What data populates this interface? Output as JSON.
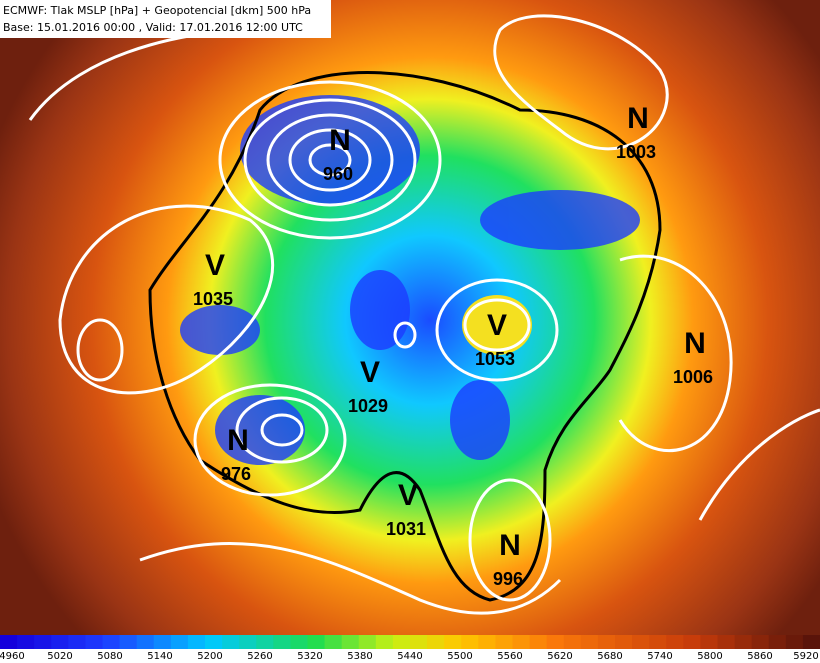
{
  "header": {
    "line1": "ECMWF: Tlak MSLP [hPa] + Geopotencial [dkm] 500 hPa",
    "line2": "Base: 15.01.2016 00:00 , Valid: 17.01.2016 12:00 UTC"
  },
  "centers": [
    {
      "letter": "N",
      "value": "960"
    },
    {
      "letter": "N",
      "value": "1003"
    },
    {
      "letter": "V",
      "value": "1035"
    },
    {
      "letter": "V",
      "value": "1053"
    },
    {
      "letter": "N",
      "value": "1006"
    },
    {
      "letter": "V",
      "value": "1029"
    },
    {
      "letter": "N",
      "value": "976"
    },
    {
      "letter": "V",
      "value": "1031"
    },
    {
      "letter": "N",
      "value": "996"
    }
  ],
  "legend": {
    "ticks": [
      "4960",
      "5020",
      "5080",
      "5140",
      "5200",
      "5260",
      "5320",
      "5380",
      "5440",
      "5500",
      "5560",
      "5620",
      "5680",
      "5740",
      "5800",
      "5860",
      "5920"
    ]
  }
}
